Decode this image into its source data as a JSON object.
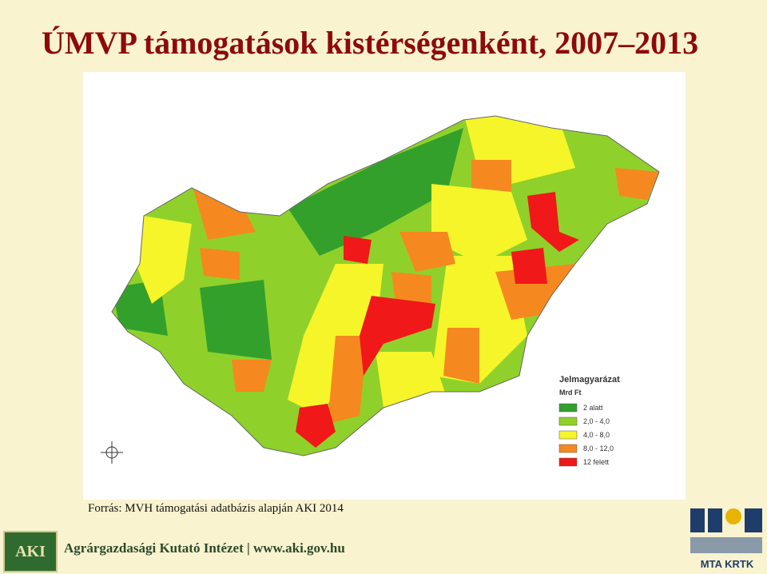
{
  "header": {
    "title": "ÚMVP támogatások kistérségenként, 2007–2013"
  },
  "legend": {
    "title": "Jelmagyarázat",
    "unit": "Mrd Ft",
    "items": [
      {
        "label": "2 alatt",
        "color": "#33a02c"
      },
      {
        "label": "2,0 - 4,0",
        "color": "#8fd12a"
      },
      {
        "label": "4,0 - 8,0",
        "color": "#f5f52a"
      },
      {
        "label": "8,0 - 12,0",
        "color": "#f5891f"
      },
      {
        "label": "12 felett",
        "color": "#f01818"
      }
    ]
  },
  "source": "Forrás: MVH támogatási adatbázis alapján AKI 2014",
  "footer": {
    "logo": "AKI",
    "institute": "Agrárgazdasági Kutató Intézet | www.aki.gov.hu",
    "partner": "MTA KRTK"
  }
}
